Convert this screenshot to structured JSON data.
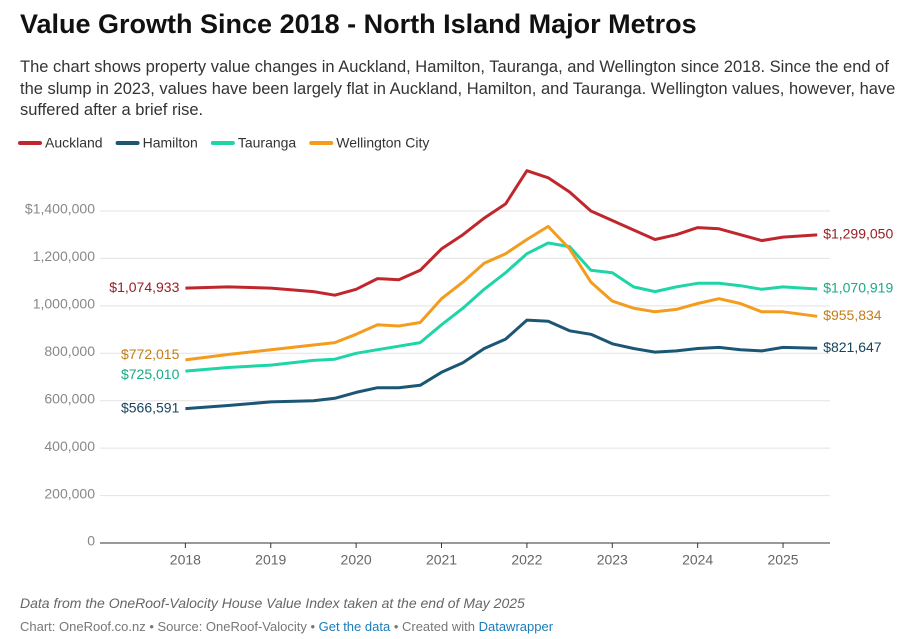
{
  "chart_data": {
    "type": "line",
    "title": "Value Growth Since 2018 - North Island Major Metros",
    "subtitle": "The chart shows property value changes in Auckland, Hamilton, Tauranga, and Wellington since 2018. Since the end of the slump in 2023, values have been largely flat in Auckland, Hamilton, and Tauranga. Wellington values, however, have suffered after a brief rise.",
    "x": [
      2018.0,
      2018.5,
      2019.0,
      2019.5,
      2019.75,
      2020.0,
      2020.25,
      2020.5,
      2020.75,
      2021.0,
      2021.25,
      2021.5,
      2021.75,
      2022.0,
      2022.25,
      2022.5,
      2022.75,
      2023.0,
      2023.25,
      2023.5,
      2023.75,
      2024.0,
      2024.25,
      2024.5,
      2024.75,
      2025.0,
      2025.4
    ],
    "xlim": [
      2017.0,
      2025.55
    ],
    "xticks": [
      2018,
      2019,
      2020,
      2021,
      2022,
      2023,
      2024,
      2025
    ],
    "ylim": [
      0,
      1600000
    ],
    "yticks": [
      0,
      {
        "value": 200000,
        "label": "200,000"
      },
      {
        "value": 400000,
        "label": "400,000"
      },
      {
        "value": 600000,
        "label": "600,000"
      },
      {
        "value": 800000,
        "label": "800,000"
      },
      {
        "value": 1000000,
        "label": "1,000,000"
      },
      {
        "value": 1200000,
        "label": "1,200,000"
      },
      {
        "value": 1400000,
        "label": "$1,400,000"
      }
    ],
    "grid": true,
    "legend": "top-left",
    "series": [
      {
        "name": "Auckland",
        "color": "#c0272d",
        "values": [
          1074933,
          1080000,
          1075000,
          1060000,
          1045000,
          1070000,
          1115000,
          1110000,
          1150000,
          1240000,
          1300000,
          1370000,
          1430000,
          1570000,
          1540000,
          1480000,
          1400000,
          1360000,
          1320000,
          1280000,
          1300000,
          1330000,
          1325000,
          1300000,
          1275000,
          1290000,
          1299050
        ],
        "value_labels": [
          "$1,074,933",
          null,
          null,
          null,
          null,
          null,
          null,
          null,
          null,
          null,
          null,
          null,
          null,
          null,
          null,
          null,
          null,
          null,
          null,
          null,
          null,
          null,
          null,
          null,
          null,
          null,
          "$1,299,050"
        ]
      },
      {
        "name": "Hamilton",
        "color": "#1b5675",
        "values": [
          566591,
          580000,
          595000,
          600000,
          610000,
          635000,
          655000,
          655000,
          665000,
          720000,
          760000,
          820000,
          860000,
          940000,
          935000,
          895000,
          880000,
          840000,
          820000,
          805000,
          810000,
          820000,
          825000,
          815000,
          810000,
          825000,
          821647
        ],
        "value_labels": [
          "$566,591",
          null,
          null,
          null,
          null,
          null,
          null,
          null,
          null,
          null,
          null,
          null,
          null,
          null,
          null,
          null,
          null,
          null,
          null,
          null,
          null,
          null,
          null,
          null,
          null,
          null,
          "$821,647"
        ]
      },
      {
        "name": "Tauranga",
        "color": "#1fd5a8",
        "values": [
          725010,
          740000,
          750000,
          770000,
          775000,
          800000,
          815000,
          830000,
          845000,
          920000,
          990000,
          1070000,
          1140000,
          1220000,
          1265000,
          1250000,
          1150000,
          1140000,
          1080000,
          1060000,
          1080000,
          1095000,
          1095000,
          1085000,
          1070000,
          1080000,
          1070919
        ],
        "value_labels": [
          "$725,010",
          null,
          null,
          null,
          null,
          null,
          null,
          null,
          null,
          null,
          null,
          null,
          null,
          null,
          null,
          null,
          null,
          null,
          null,
          null,
          null,
          null,
          null,
          null,
          null,
          null,
          "$1,070,919"
        ]
      },
      {
        "name": "Wellington City",
        "color": "#f39c1e",
        "values": [
          772015,
          795000,
          815000,
          835000,
          845000,
          880000,
          920000,
          915000,
          930000,
          1030000,
          1100000,
          1180000,
          1220000,
          1280000,
          1335000,
          1240000,
          1100000,
          1020000,
          990000,
          975000,
          985000,
          1010000,
          1030000,
          1010000,
          975000,
          975000,
          955834
        ],
        "value_labels": [
          "$772,015",
          null,
          null,
          null,
          null,
          null,
          null,
          null,
          null,
          null,
          null,
          null,
          null,
          null,
          null,
          null,
          null,
          null,
          null,
          null,
          null,
          null,
          null,
          null,
          null,
          null,
          "$955,834"
        ]
      }
    ],
    "note": "Data from the OneRoof-Valocity House Value Index taken at the end of May 2025",
    "credit": "Chart: OneRoof.co.nz • Source: OneRoof-Valocity •",
    "data_link": "Get the data",
    "created": "• Created with",
    "tool_link": "Datawrapper"
  }
}
